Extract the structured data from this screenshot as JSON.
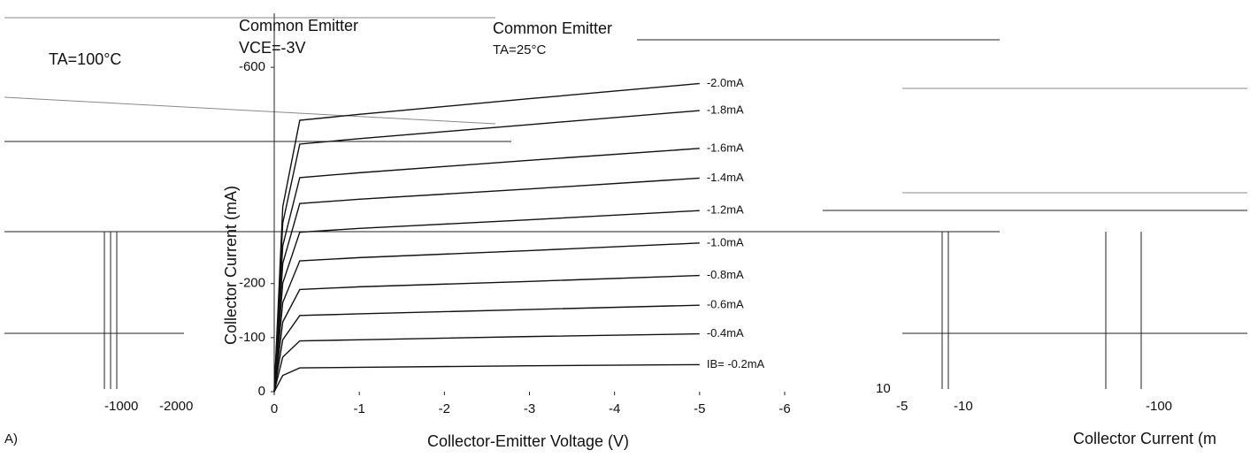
{
  "chart_data": {
    "type": "line",
    "x_label": "Collector-Emitter Voltage (V)",
    "y_label": "Collector Current (mA)",
    "x": [
      0,
      -0.1,
      -0.3,
      -1,
      -3,
      -5
    ],
    "xlim": [
      0,
      -6
    ],
    "xticks": [
      0,
      -1,
      -2,
      -3,
      -4,
      -5,
      -6
    ],
    "ylim": [
      0,
      -700
    ],
    "yticks": [
      0,
      -100,
      -200,
      -600
    ],
    "color": "#111111",
    "series": [
      {
        "name": "IB= -0.2mA",
        "values": [
          0,
          -30,
          -44,
          -45,
          -48,
          -50
        ]
      },
      {
        "name": "-0.4mA",
        "values": [
          0,
          -64,
          -94,
          -96,
          -102,
          -107
        ]
      },
      {
        "name": "-0.6mA",
        "values": [
          0,
          -96,
          -141,
          -144,
          -152,
          -160
        ]
      },
      {
        "name": "-0.8mA",
        "values": [
          0,
          -129,
          -189,
          -194,
          -204,
          -215
        ]
      },
      {
        "name": "-1.0mA",
        "values": [
          0,
          -165,
          -242,
          -248,
          -261,
          -275
        ]
      },
      {
        "name": "-1.2mA",
        "values": [
          0,
          -201,
          -295,
          -302,
          -318,
          -335
        ]
      },
      {
        "name": "-1.4mA",
        "values": [
          0,
          -237,
          -348,
          -356,
          -375,
          -395
        ]
      },
      {
        "name": "-1.6mA",
        "values": [
          0,
          -270,
          -396,
          -405,
          -428,
          -450
        ]
      },
      {
        "name": "-1.8mA",
        "values": [
          0,
          -312,
          -458,
          -468,
          -494,
          -520
        ]
      },
      {
        "name": "-2.0mA",
        "values": [
          0,
          -342,
          -502,
          -513,
          -542,
          -570
        ]
      }
    ],
    "annotations": [
      "Common Emitter",
      "VCE=-3V",
      "TA=100°C",
      "Common Emitter",
      "TA=25°C",
      "-1000",
      "-2000",
      "A)",
      "10",
      "-5",
      "-10",
      "-100",
      "Collector Current (m"
    ]
  }
}
